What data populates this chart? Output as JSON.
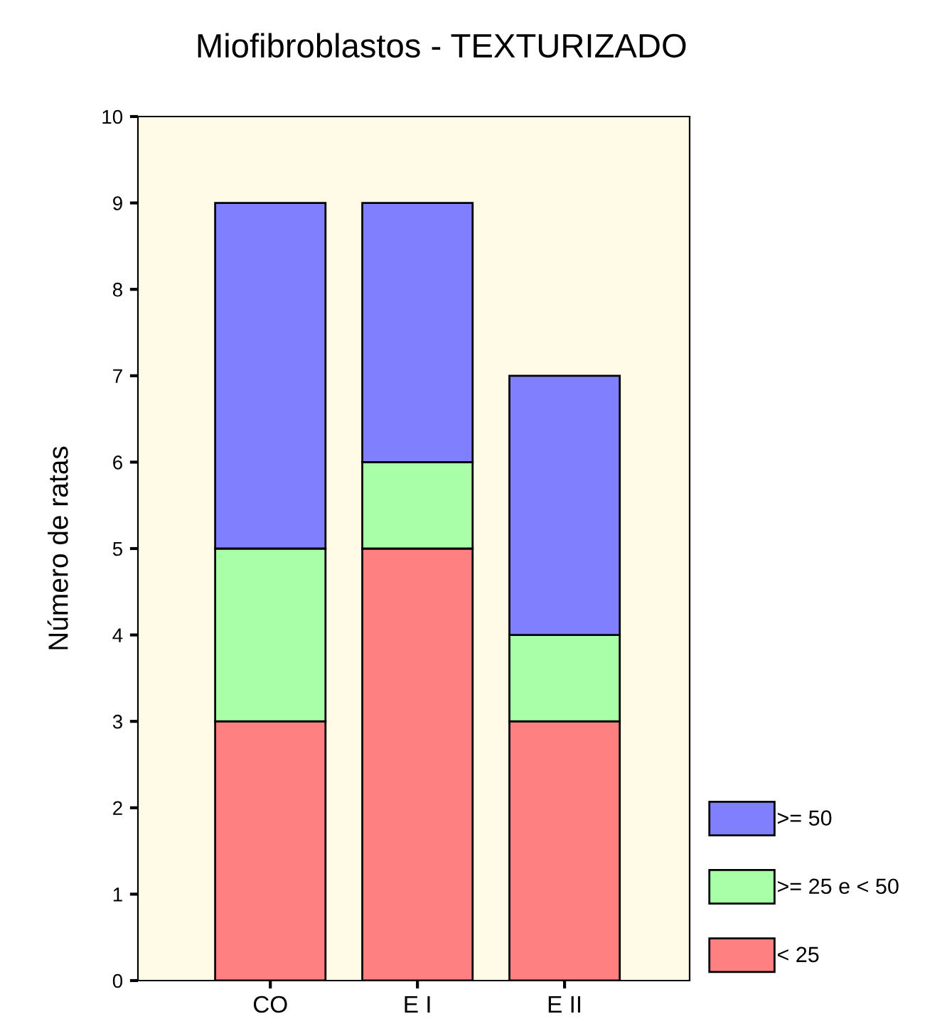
{
  "chart_data": {
    "type": "bar",
    "title": "Miofibroblastos - TEXTURIZADO",
    "ylabel": "Número de ratas",
    "categories": [
      "CO",
      "E I",
      "E II"
    ],
    "stacked": true,
    "series": [
      {
        "name": "< 25",
        "color": "#ff8080",
        "values": [
          3,
          5,
          3
        ]
      },
      {
        "name": ">= 25 e < 50",
        "color": "#a8ffa8",
        "values": [
          2,
          1,
          1
        ]
      },
      {
        "name": ">= 50",
        "color": "#8080ff",
        "values": [
          4,
          3,
          3
        ]
      }
    ],
    "ylim": [
      0,
      10
    ],
    "yticks": [
      0,
      1,
      2,
      3,
      4,
      5,
      6,
      7,
      8,
      9,
      10
    ],
    "grid": false,
    "legend": "bottom right"
  }
}
